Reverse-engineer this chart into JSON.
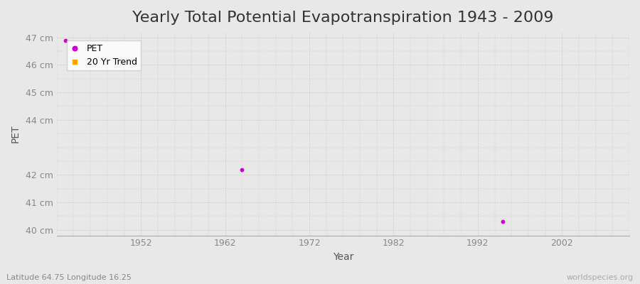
{
  "title": "Yearly Total Potential Evapotranspiration 1943 - 2009",
  "xlabel": "Year",
  "ylabel": "PET",
  "background_color": "#e8e8e8",
  "plot_bg_color": "#e8e8e8",
  "xlim": [
    1942,
    2010
  ],
  "ylim": [
    39.8,
    47.2
  ],
  "yticks": [
    40,
    41,
    42,
    44,
    45,
    46,
    47
  ],
  "ytick_labels": [
    "40 cm",
    "41 cm",
    "42 cm",
    "44 cm",
    "45 cm",
    "46 cm",
    "47 cm"
  ],
  "xticks": [
    1952,
    1962,
    1972,
    1982,
    1992,
    2002
  ],
  "pet_color": "#cc00cc",
  "trend_color": "#ffa500",
  "pet_points": [
    [
      1943,
      46.9
    ],
    [
      1964,
      42.2
    ],
    [
      1995,
      40.3
    ]
  ],
  "trend_points": [],
  "subtitle": "Latitude 64.75 Longitude 16.25",
  "watermark": "worldspecies.org",
  "legend_pet": "PET",
  "legend_trend": "20 Yr Trend",
  "title_fontsize": 16,
  "label_fontsize": 10,
  "tick_fontsize": 9
}
